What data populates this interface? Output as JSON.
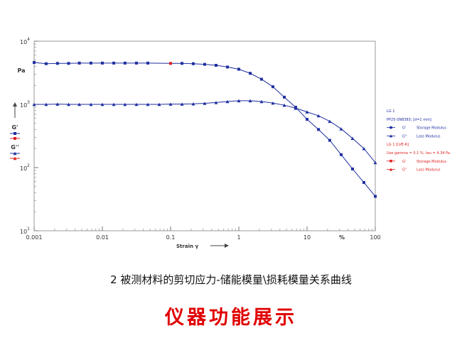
{
  "chart_data": {
    "type": "line",
    "xscale": "log",
    "yscale": "log",
    "xlim": [
      0.001,
      100
    ],
    "ylim": [
      10,
      10000
    ],
    "grid": false,
    "xlabel": "Strain γ",
    "ylabel": "Pa",
    "x_ticks": [
      {
        "value": 0.001,
        "label": "0.001"
      },
      {
        "value": 0.01,
        "label": "0.01"
      },
      {
        "value": 0.1,
        "label": "0.1"
      },
      {
        "value": 1,
        "label": "1"
      },
      {
        "value": 10,
        "label": "10"
      },
      {
        "value": 100,
        "label": "100"
      }
    ],
    "x_unit_label": "%",
    "y_ticks": [
      {
        "value": 10,
        "base": "10",
        "exp": "1"
      },
      {
        "value": 100,
        "base": "10",
        "exp": "2"
      },
      {
        "value": 1000,
        "base": "10",
        "exp": "3"
      },
      {
        "value": 10000,
        "base": "10",
        "exp": "4"
      }
    ],
    "left_axis_labels": [
      "G'",
      "G''"
    ],
    "series": [
      {
        "name": "G'",
        "legend_label": "Storage Modulus",
        "color": "#1f2fa0",
        "marker": "square",
        "highlight_index": 11,
        "highlight_color": "#e02020",
        "x": [
          0.001,
          0.0015,
          0.0022,
          0.0032,
          0.0046,
          0.0068,
          0.01,
          0.0147,
          0.0215,
          0.0316,
          0.0464,
          0.1,
          0.147,
          0.215,
          0.316,
          0.464,
          0.681,
          1.0,
          1.47,
          2.15,
          3.16,
          4.64,
          6.81,
          10,
          14.7,
          21.5,
          31.6,
          46.4,
          68.1,
          100
        ],
        "y": [
          4600,
          4400,
          4450,
          4450,
          4500,
          4500,
          4500,
          4500,
          4500,
          4500,
          4500,
          4450,
          4450,
          4400,
          4300,
          4150,
          3900,
          3600,
          3100,
          2500,
          1900,
          1300,
          900,
          580,
          400,
          270,
          160,
          95,
          58,
          35
        ]
      },
      {
        "name": "G''",
        "legend_label": "Loss Modulus",
        "color": "#1f2fa0",
        "marker": "triangle",
        "x": [
          0.001,
          0.0015,
          0.0022,
          0.0032,
          0.0046,
          0.0068,
          0.01,
          0.0147,
          0.0215,
          0.0316,
          0.0464,
          0.0681,
          0.1,
          0.147,
          0.215,
          0.316,
          0.464,
          0.681,
          1.0,
          1.47,
          2.15,
          3.16,
          4.64,
          6.81,
          10,
          14.7,
          21.5,
          31.6,
          46.4,
          68.1,
          100
        ],
        "y": [
          1000,
          1000,
          1010,
          1000,
          1000,
          1000,
          1000,
          1000,
          1000,
          1000,
          1000,
          1000,
          1010,
          1010,
          1020,
          1040,
          1070,
          1110,
          1140,
          1140,
          1110,
          1050,
          970,
          870,
          760,
          660,
          540,
          410,
          290,
          200,
          120
        ]
      }
    ],
    "legend": {
      "position": "right",
      "lines": [
        {
          "text": "LG 1",
          "color": "#1f2fa0"
        },
        {
          "text": "PP25-SN8383; [d=1 mm]",
          "color": "#1f2fa0"
        },
        {
          "text": "G'",
          "sub": "Storage Modulus",
          "marker": "square",
          "color": "#1f2fa0"
        },
        {
          "text": "G''",
          "sub": "Loss Modulus",
          "marker": "triangle",
          "color": "#1f2fa0"
        },
        {
          "text": "LG 1 [LVE-R]",
          "color": "#e02020"
        },
        {
          "text": "Use gamma = 0.1 %, tau = 4.34 Pa",
          "color": "#e02020"
        },
        {
          "text": "G'",
          "sub": "Storage Modulus",
          "marker": "square",
          "color": "#e02020"
        },
        {
          "text": "G''",
          "sub": "Loss Modulus",
          "marker": "triangle",
          "color": "#e02020"
        }
      ]
    }
  },
  "captions": {
    "main": "2 被测材料的剪切应力-储能模量\\损耗模量关系曲线",
    "sub": "仪器功能展示"
  }
}
